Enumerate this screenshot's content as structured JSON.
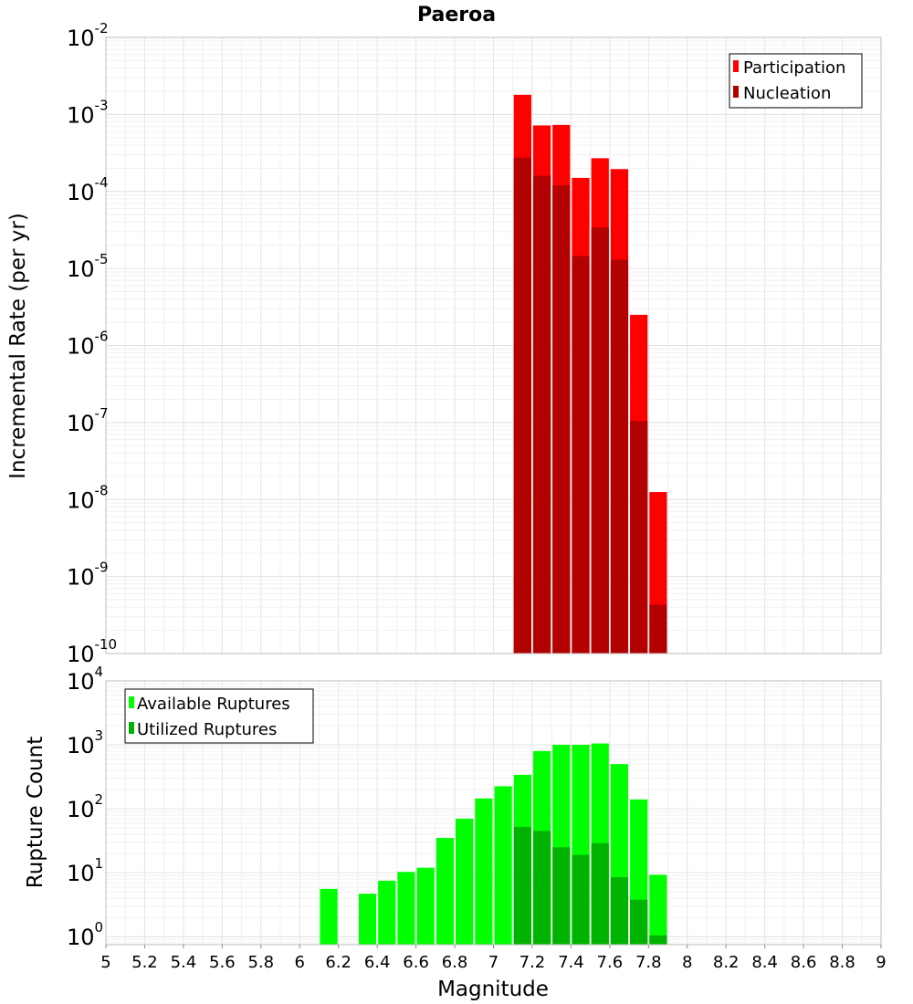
{
  "chart_data": [
    {
      "type": "bar",
      "title": "Paeroa",
      "xlabel": "",
      "ylabel": "Incremental Rate (per yr)",
      "yscale": "log",
      "xlim": [
        5,
        9
      ],
      "ylim": [
        1e-10,
        0.01
      ],
      "grid": true,
      "legend_position": "top-right",
      "bin_width": 0.1,
      "y_ticks": [
        {
          "base": "10",
          "exp": "-2"
        },
        {
          "base": "10",
          "exp": "-3"
        },
        {
          "base": "10",
          "exp": "-4"
        },
        {
          "base": "10",
          "exp": "-5"
        },
        {
          "base": "10",
          "exp": "-6"
        },
        {
          "base": "10",
          "exp": "-7"
        },
        {
          "base": "10",
          "exp": "-8"
        },
        {
          "base": "10",
          "exp": "-9"
        },
        {
          "base": "10",
          "exp": "-10"
        }
      ],
      "y_tick_values": [
        0.01,
        0.001,
        0.0001,
        1e-05,
        1e-06,
        1e-07,
        1e-08,
        1e-09,
        1e-10
      ],
      "x": [
        7.15,
        7.25,
        7.35,
        7.45,
        7.55,
        7.65,
        7.75,
        7.85
      ],
      "series": [
        {
          "name": "Participation",
          "color": "#ff0000",
          "values": [
            0.0018,
            0.00072,
            0.00073,
            0.00015,
            0.00027,
            0.000195,
            2.5e-06,
            1.25e-08
          ]
        },
        {
          "name": "Nucleation",
          "color": "#b30000",
          "values": [
            0.000275,
            0.00016,
            0.00012,
            1.45e-05,
            3.4e-05,
            1.3e-05,
            1.05e-07,
            4.3e-10
          ]
        }
      ]
    },
    {
      "type": "bar",
      "title": "",
      "xlabel": "Magnitude",
      "ylabel": "Rupture Count",
      "yscale": "log",
      "xlim": [
        5,
        9
      ],
      "ylim": [
        0.75,
        10000
      ],
      "grid": true,
      "legend_position": "top-left",
      "bin_width": 0.1,
      "y_ticks": [
        {
          "base": "10",
          "exp": "4"
        },
        {
          "base": "10",
          "exp": "3"
        },
        {
          "base": "10",
          "exp": "2"
        },
        {
          "base": "10",
          "exp": "1"
        },
        {
          "base": "10",
          "exp": "0"
        }
      ],
      "y_tick_values": [
        10000,
        1000,
        100,
        10,
        1
      ],
      "x_ticks": [
        "5",
        "5.2",
        "5.4",
        "5.6",
        "5.8",
        "6",
        "6.2",
        "6.4",
        "6.6",
        "6.8",
        "7",
        "7.2",
        "7.4",
        "7.6",
        "7.8",
        "8",
        "8.2",
        "8.4",
        "8.6",
        "8.8",
        "9"
      ],
      "x_tick_values": [
        5,
        5.2,
        5.4,
        5.6,
        5.8,
        6,
        6.2,
        6.4,
        6.6,
        6.8,
        7,
        7.2,
        7.4,
        7.6,
        7.8,
        8,
        8.2,
        8.4,
        8.6,
        8.8,
        9
      ],
      "series": [
        {
          "name": "Available Ruptures",
          "color": "#00ff00",
          "x": [
            6.15,
            6.35,
            6.45,
            6.55,
            6.65,
            6.75,
            6.85,
            6.95,
            7.05,
            7.15,
            7.25,
            7.35,
            7.45,
            7.55,
            7.65,
            7.75,
            7.85
          ],
          "values": [
            5.6,
            4.7,
            7.5,
            10.3,
            12,
            35,
            70,
            145,
            225,
            340,
            800,
            1000,
            1000,
            1050,
            500,
            140,
            9.3
          ]
        },
        {
          "name": "Utilized Ruptures",
          "color": "#00b300",
          "x": [
            7.15,
            7.25,
            7.35,
            7.45,
            7.55,
            7.65,
            7.75,
            7.85
          ],
          "values": [
            52,
            45,
            25,
            19,
            29,
            8.5,
            3.8,
            1.05
          ]
        }
      ]
    }
  ]
}
